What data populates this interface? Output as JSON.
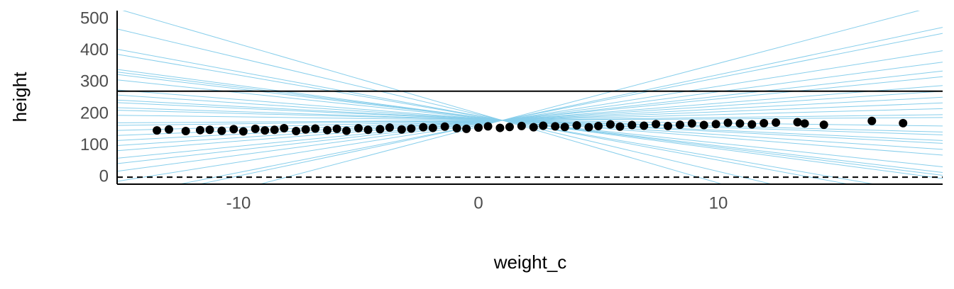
{
  "chart_data": {
    "type": "scatter",
    "xlabel": "weight_c",
    "ylabel": "height",
    "x": [
      -13.4,
      -12.9,
      -12.2,
      -11.6,
      -11.2,
      -10.7,
      -10.2,
      -9.8,
      -9.3,
      -8.9,
      -8.5,
      -8.1,
      -7.6,
      -7.2,
      -6.8,
      -6.3,
      -5.9,
      -5.5,
      -5.0,
      -4.6,
      -4.1,
      -3.7,
      -3.2,
      -2.8,
      -2.3,
      -1.9,
      -1.4,
      -0.9,
      -0.5,
      0,
      0.4,
      0.9,
      1.3,
      1.8,
      2.3,
      2.7,
      3.2,
      3.6,
      4.1,
      4.6,
      5.0,
      5.5,
      5.9,
      6.4,
      6.9,
      7.4,
      7.9,
      8.4,
      8.9,
      9.4,
      9.9,
      10.4,
      10.9,
      11.4,
      11.9,
      12.4,
      13.3,
      13.6,
      14.4,
      16.4,
      17.7
    ],
    "values": [
      148,
      151,
      146,
      149,
      150,
      147,
      152,
      145,
      153,
      148,
      150,
      155,
      146,
      151,
      154,
      149,
      153,
      147,
      155,
      150,
      152,
      157,
      151,
      154,
      158,
      156,
      160,
      155,
      153,
      157,
      161,
      156,
      159,
      162,
      158,
      163,
      161,
      159,
      164,
      158,
      162,
      167,
      160,
      165,
      163,
      168,
      162,
      166,
      170,
      165,
      168,
      172,
      170,
      167,
      171,
      173,
      174,
      170,
      166,
      178,
      171
    ],
    "color": "#000000",
    "prior_lines": {
      "color": "#87ceeb",
      "x": [
        -15.06,
        19.35
      ],
      "series": [
        {
          "values": [
            533,
            -224
          ]
        },
        {
          "values": [
            469,
            -150
          ]
        },
        {
          "values": [
            405,
            -77
          ]
        },
        {
          "values": [
            389,
            -59
          ]
        },
        {
          "values": [
            341,
            -4
          ]
        },
        {
          "values": [
            333,
            6
          ]
        },
        {
          "values": [
            325,
            15
          ]
        },
        {
          "values": [
            308,
            33
          ]
        },
        {
          "values": [
            276,
            70
          ]
        },
        {
          "values": [
            260,
            88
          ]
        },
        {
          "values": [
            244,
            107
          ]
        },
        {
          "values": [
            236,
            116
          ]
        },
        {
          "values": [
            220,
            134
          ]
        },
        {
          "values": [
            212,
            143
          ]
        },
        {
          "values": [
            196,
            162
          ]
        },
        {
          "values": [
            172,
            189
          ]
        },
        {
          "values": [
            164,
            198
          ]
        },
        {
          "values": [
            148,
            217
          ]
        },
        {
          "values": [
            132,
            235
          ]
        },
        {
          "values": [
            116,
            253
          ]
        },
        {
          "values": [
            100,
            272
          ]
        },
        {
          "values": [
            84,
            290
          ]
        },
        {
          "values": [
            60,
            318
          ]
        },
        {
          "values": [
            43,
            336
          ]
        },
        {
          "values": [
            19,
            364
          ]
        },
        {
          "values": [
            -13,
            400
          ]
        },
        {
          "values": [
            -61,
            455
          ]
        },
        {
          "values": [
            -77,
            474
          ]
        },
        {
          "values": [
            -141,
            547
          ]
        }
      ]
    },
    "reference_lines": [
      {
        "value": 272,
        "style": "solid"
      },
      {
        "value": 0,
        "style": "dashed"
      }
    ],
    "xlim": [
      -15.06,
      19.35
    ],
    "ylim": [
      -22,
      527
    ],
    "xticks": [
      -10,
      0,
      10
    ],
    "yticks": [
      0,
      100,
      200,
      300,
      400,
      500
    ]
  }
}
